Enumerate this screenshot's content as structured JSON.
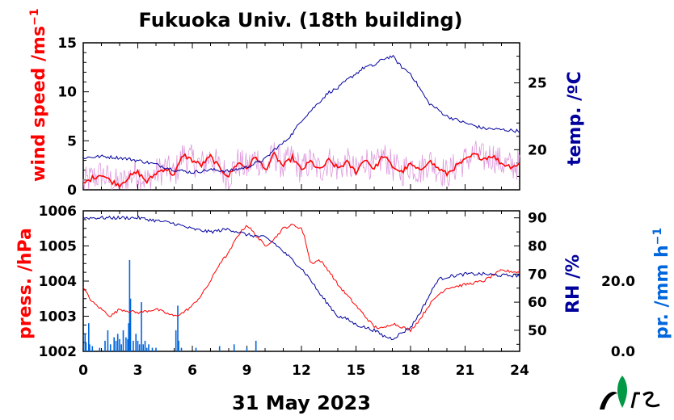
{
  "title": "Fukuoka Univ. (18th building)",
  "date_label": "31 May 2023",
  "logo_text": "NIES",
  "colors": {
    "red": "#ff0000",
    "blue": "#00009c",
    "lightblue": "#0066dd",
    "pink": "#dd99dd",
    "black": "#000000"
  },
  "chart_data": [
    {
      "type": "line",
      "name": "top",
      "x_ticks": [
        "0",
        "3",
        "6",
        "9",
        "12",
        "15",
        "18",
        "21",
        "24"
      ],
      "xlim": [
        0,
        24
      ],
      "left_axis": {
        "label": "wind speed /ms",
        "label_sup": "−1",
        "ylim": [
          0,
          15
        ],
        "ticks": [
          "0",
          "5",
          "10",
          "15"
        ]
      },
      "right_axis": {
        "label": "temp. /ºC",
        "ylim": [
          17,
          28
        ],
        "ticks": [
          "20",
          "25"
        ]
      },
      "series": [
        {
          "axis": "left",
          "style": "wind_avg",
          "x": [
            0,
            0.5,
            1,
            1.5,
            2,
            2.5,
            3,
            3.5,
            4,
            4.5,
            5,
            5.5,
            6,
            6.5,
            7,
            7.5,
            8,
            8.5,
            9,
            9.5,
            10,
            10.5,
            11,
            11.5,
            12,
            12.5,
            13,
            13.5,
            14,
            14.5,
            15,
            15.5,
            16,
            16.5,
            17,
            17.5,
            18,
            18.5,
            19,
            19.5,
            20,
            20.5,
            21,
            21.5,
            22,
            22.5,
            23,
            23.5,
            24
          ],
          "y": [
            0.6,
            1.2,
            1.6,
            0.9,
            0.5,
            1.3,
            1.8,
            0.8,
            1.7,
            2.2,
            1.5,
            3.6,
            3.0,
            2.5,
            3.4,
            2.2,
            1.4,
            2.8,
            2.2,
            3.4,
            2.0,
            3.6,
            2.4,
            3.3,
            2.0,
            2.9,
            2.0,
            3.0,
            2.2,
            2.8,
            1.8,
            3.2,
            2.1,
            3.5,
            2.4,
            1.8,
            2.6,
            1.9,
            3.0,
            2.2,
            1.6,
            2.4,
            3.0,
            3.6,
            3.2,
            3.5,
            2.7,
            2.4,
            2.6
          ]
        },
        {
          "axis": "left",
          "style": "wind_raw",
          "noise": 1.6
        },
        {
          "axis": "right",
          "style": "temp",
          "x": [
            0,
            1,
            2,
            3,
            4,
            5,
            6,
            7,
            8,
            9,
            10,
            10.5,
            11,
            11.5,
            12,
            12.5,
            13,
            13.5,
            14,
            14.5,
            15,
            15.5,
            16,
            16.5,
            17,
            17.5,
            18,
            18.5,
            19,
            20,
            21,
            22,
            23,
            24
          ],
          "y": [
            19.4,
            19.5,
            19.4,
            19.2,
            18.9,
            18.5,
            18.3,
            18.5,
            18.4,
            18.7,
            19.3,
            20.0,
            20.5,
            21.2,
            22.2,
            22.9,
            23.6,
            24.3,
            24.6,
            25.2,
            25.7,
            26.2,
            26.3,
            26.8,
            27.0,
            26.2,
            25.7,
            24.6,
            23.5,
            22.5,
            22.0,
            21.6,
            21.5,
            21.4
          ]
        }
      ]
    },
    {
      "type": "line",
      "name": "bottom",
      "x_ticks": [
        "0",
        "3",
        "6",
        "9",
        "12",
        "15",
        "18",
        "21",
        "24"
      ],
      "xlim": [
        0,
        24
      ],
      "left_axis": {
        "label": "press. /hPa",
        "ylim": [
          1002,
          1006
        ],
        "ticks": [
          "1002",
          "1003",
          "1004",
          "1005",
          "1006"
        ]
      },
      "right_axis": {
        "label": "RH /%",
        "ylim": [
          42.5,
          92.5
        ],
        "ticks": [
          "50",
          "60",
          "70",
          "80",
          "90"
        ]
      },
      "far_right_axis": {
        "label": "pr. /mm h",
        "label_sup": "−1",
        "ylim": [
          0,
          40
        ],
        "ticks": [
          "0.0",
          "20.0"
        ]
      },
      "series": [
        {
          "axis": "left",
          "style": "pressure",
          "x": [
            0,
            0.5,
            1,
            1.5,
            2,
            3,
            4,
            5,
            5.5,
            6,
            6.5,
            7,
            7.5,
            8,
            8.5,
            9,
            9.5,
            10,
            10.5,
            11,
            11.5,
            12,
            12.2,
            12.5,
            13,
            13.5,
            14,
            14.5,
            15,
            15.5,
            16,
            16.5,
            17,
            17.5,
            18,
            18.5,
            19,
            19.5,
            20,
            21,
            22,
            23,
            24
          ],
          "y": [
            1003.8,
            1003.4,
            1003.2,
            1003.0,
            1003.2,
            1003.1,
            1003.2,
            1003.0,
            1003.1,
            1003.3,
            1003.6,
            1004.0,
            1004.5,
            1004.8,
            1005.3,
            1005.6,
            1005.3,
            1005.0,
            1005.2,
            1005.5,
            1005.6,
            1005.5,
            1005.2,
            1004.5,
            1004.6,
            1004.3,
            1003.9,
            1003.6,
            1003.3,
            1003.0,
            1002.7,
            1002.65,
            1002.8,
            1002.7,
            1002.6,
            1002.9,
            1003.3,
            1003.6,
            1003.8,
            1003.9,
            1004.0,
            1004.3,
            1004.25
          ]
        },
        {
          "axis": "right",
          "style": "rh",
          "x": [
            0,
            1,
            2,
            3,
            4,
            5,
            6,
            7,
            8,
            9,
            10,
            10.5,
            11,
            11.5,
            12,
            12.5,
            13,
            13.5,
            14,
            14.5,
            15,
            15.5,
            16,
            16.5,
            17,
            17.5,
            18,
            18.5,
            19,
            19.5,
            20,
            21,
            22,
            23,
            24
          ],
          "y": [
            90,
            90,
            90,
            90,
            89,
            88,
            86,
            85,
            86,
            84,
            83,
            81,
            78,
            75,
            72,
            68,
            63,
            59,
            55,
            54,
            52,
            51,
            50,
            48,
            47,
            49,
            51,
            56,
            62,
            68,
            69,
            70,
            70,
            69.5,
            69.5
          ]
        },
        {
          "axis": "far_right",
          "style": "precip",
          "bars": [
            [
              0.1,
              5
            ],
            [
              0.15,
              2.5
            ],
            [
              0.3,
              8
            ],
            [
              0.35,
              2
            ],
            [
              0.5,
              1.5
            ],
            [
              0.9,
              1
            ],
            [
              1.2,
              3
            ],
            [
              1.35,
              6
            ],
            [
              1.5,
              2
            ],
            [
              1.7,
              4
            ],
            [
              1.8,
              3
            ],
            [
              1.9,
              5
            ],
            [
              2.0,
              3.5
            ],
            [
              2.1,
              2
            ],
            [
              2.2,
              6
            ],
            [
              2.35,
              4
            ],
            [
              2.45,
              3.5
            ],
            [
              2.5,
              8
            ],
            [
              2.55,
              26
            ],
            [
              2.6,
              15
            ],
            [
              2.75,
              3
            ],
            [
              2.9,
              5
            ],
            [
              3.0,
              3
            ],
            [
              3.1,
              2
            ],
            [
              3.2,
              14
            ],
            [
              3.3,
              2
            ],
            [
              3.4,
              3
            ],
            [
              3.5,
              1
            ],
            [
              3.6,
              2
            ],
            [
              3.8,
              1
            ],
            [
              4.0,
              1
            ],
            [
              5.1,
              6
            ],
            [
              5.2,
              13
            ],
            [
              5.25,
              3
            ],
            [
              5.4,
              1
            ],
            [
              6.2,
              1
            ],
            [
              7.5,
              1.5
            ],
            [
              8.3,
              2
            ],
            [
              9.0,
              1
            ],
            [
              9.5,
              3
            ]
          ]
        }
      ]
    }
  ]
}
